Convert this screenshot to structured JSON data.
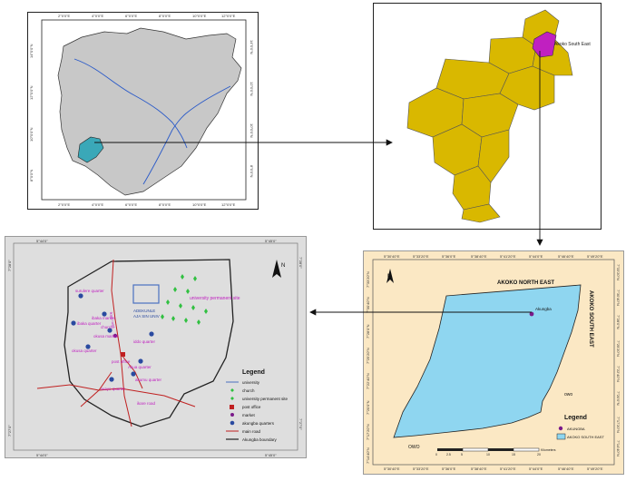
{
  "panel_nigeria": {
    "top_ticks": [
      "2°0'0\"E",
      "4°0'0\"E",
      "6°0'0\"E",
      "8°0'0\"E",
      "10°0'0\"E",
      "12°0'0\"E",
      "14°0'0\"E"
    ],
    "bottom_ticks": [
      "2°0'0\"E",
      "4°0'0\"E",
      "6°0'0\"E",
      "8°0'0\"E",
      "10°0'0\"E",
      "12°0'0\"E",
      "14°0'0\"E"
    ],
    "left_ticks": [
      "14°0'0\"N",
      "12°0'0\"N",
      "10°0'0\"N",
      "8°0'0\"N",
      "6°0'0\"N"
    ],
    "right_ticks": [
      "14°0'0\"N",
      "12°0'0\"N",
      "10°0'0\"N",
      "8°0'0\"N",
      "6°0'0\"N"
    ],
    "colors": {
      "land": "#c8c8c8",
      "highlight": "#3aa8b8",
      "river": "#2a5ac8"
    }
  },
  "panel_ondo": {
    "highlight_label": "Akoko South East",
    "colors": {
      "lga": "#d9b800",
      "highlight": "#c020c0"
    }
  },
  "panel_akoko": {
    "top_ticks": [
      "5°30'40\"E",
      "5°33'20\"E",
      "5°36'0\"E",
      "5°38'40\"E",
      "5°41'20\"E",
      "5°44'0\"E",
      "5°46'40\"E",
      "5°49'20\"E"
    ],
    "bottom_ticks": [
      "5°30'40\"E",
      "5°33'20\"E",
      "5°36'0\"E",
      "5°38'40\"E",
      "5°41'20\"E",
      "5°44'0\"E",
      "5°46'40\"E",
      "5°49'20\"E"
    ],
    "left_ticks": [
      "7°33'20\"N",
      "7°30'40\"N",
      "7°28'0\"N",
      "7°25'20\"N",
      "7°22'40\"N",
      "7°20'0\"N",
      "7°17'20\"N",
      "7°14'40\"N"
    ],
    "right_ticks": [
      "7°33'20\"N",
      "7°30'40\"N",
      "7°28'0\"N",
      "7°25'20\"N",
      "7°22'40\"N",
      "7°20'0\"N",
      "7°17'20\"N",
      "7°14'40\"N"
    ],
    "north_label": "N",
    "label_north": "AKOKO NORTH EAST",
    "label_east": "AKOKO SOUTH EAST",
    "label_owo_right": "owo",
    "label_owo_bottom": "OWO",
    "town_label": "Akungba",
    "scale_label": "Kilometers",
    "scale_ticks": [
      "0",
      "2.5",
      "5",
      "10",
      "15",
      "20"
    ],
    "legend_title": "Legend",
    "legend_items": [
      "AKUNGBA",
      "AKOKO SOUTH EAST"
    ],
    "colors": {
      "bg": "#fbe8c4",
      "area": "#8fd6f0"
    }
  },
  "panel_akungba": {
    "tick_top_left": "5°44'0\"",
    "tick_top_right": "5°45'0\"",
    "tick_bottom_left": "5°44'0\"",
    "tick_bottom_right": "5°45'0\"",
    "tick_left_top": "7°28'0\"",
    "tick_left_bottom": "7°27'0\"",
    "tick_right_top": "7°28'0\"",
    "tick_right_bottom": "7°27'0\"",
    "north_label": "N",
    "place_labels": {
      "surulere": "surulere quarter",
      "ibaka_market": "ibaka market",
      "ibaka_quarter": "ibaka quarter",
      "ikare_road": "ikare road",
      "church": "church",
      "okusa_market": "okusa market",
      "okusa_quarter": "okusa quarter",
      "iddo": "iddo quarter",
      "post_office": "post office",
      "akua": "Akua quarter",
      "akumu": "akumu quarter",
      "iwaye": "iwaye quarter",
      "ikare": "ikare road",
      "university_site": "university permanent site",
      "adekunle_1": "ADEKUNLE",
      "adekunle_2": "AJA SIN UNIV"
    },
    "legend_title": "Legend",
    "legend_items": [
      "university",
      "church",
      "university permanent site",
      "post office",
      "market",
      "akungba quarters",
      "main road",
      "Akungba boundary"
    ],
    "colors": {
      "bg": "#dedede",
      "label": "#c020c0",
      "quarter": "#2a4aa0",
      "site": "#30c040",
      "road": "#c02020",
      "university": "#4a70c0"
    }
  }
}
